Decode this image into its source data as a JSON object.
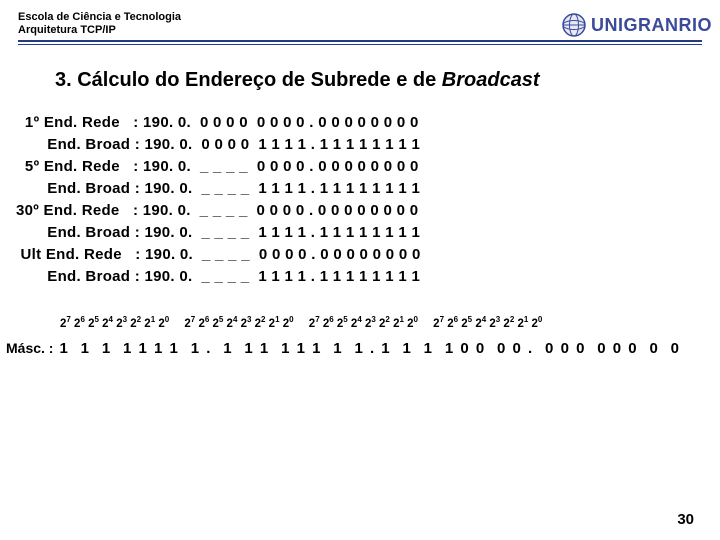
{
  "header": {
    "line1": "Escola de Ciência e Tecnologia",
    "line2": "Arquitetura TCP/IP",
    "logo_text": "UNIGRANRIO"
  },
  "title_prefix": "3. Cálculo do Endereço de Subrede e de ",
  "title_italic": "Broadcast",
  "rows": [
    {
      "label": "  1º End. Rede   : ",
      "val": "190. 0.  0 0 0 0  0 0 0 0 . 0 0 0 0 0 0 0 0"
    },
    {
      "label": "       End. Broad : ",
      "val": "190. 0.  0 0 0 0  1 1 1 1 . 1 1 1 1 1 1 1 1"
    },
    {
      "label": "  5º End. Rede   : ",
      "val": "190. 0.  _ _ _ _  0 0 0 0 . 0 0 0 0 0 0 0 0"
    },
    {
      "label": "       End. Broad : ",
      "val": "190. 0.  _ _ _ _  1 1 1 1 . 1 1 1 1 1 1 1 1"
    },
    {
      "label": "30º End. Rede   : ",
      "val": "190. 0.  _ _ _ _  0 0 0 0 . 0 0 0 0 0 0 0 0"
    },
    {
      "label": "       End. Broad : ",
      "val": "190. 0.  _ _ _ _  1 1 1 1 . 1 1 1 1 1 1 1 1"
    },
    {
      "label": " Ult End. Rede   : ",
      "val": "190. 0.  _ _ _ _  0 0 0 0 . 0 0 0 0 0 0 0 0"
    },
    {
      "label": "       End. Broad : ",
      "val": "190. 0.  _ _ _ _  1 1 1 1 . 1 1 1 1 1 1 1 1"
    }
  ],
  "bits_exponents": [
    "7",
    "6",
    "5",
    "4",
    "3",
    "2",
    "1",
    "0"
  ],
  "bits_repeat": 4,
  "mask_label": "Másc. :",
  "mask_values": "1  1  1  1 1 1 1  1 .  1  1 1  1 1 1  1  1 . 1  1  1  1 0 0  0 0 .  0 0 0  0 0 0  0  0",
  "page_number": "30",
  "colors": {
    "rule": "#233c83",
    "logo_text": "#3a4b9a",
    "globe_fill": "#bfc6d6",
    "globe_stroke": "#3a4b9a"
  }
}
